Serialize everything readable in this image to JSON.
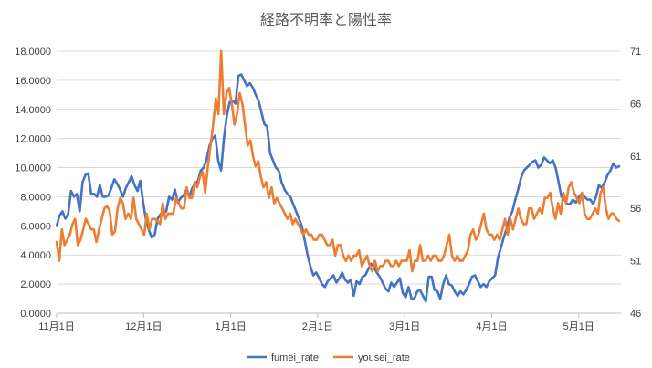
{
  "chart_data": {
    "type": "line",
    "title": "経路不明率と陽性率",
    "x_tick_labels": [
      "11月1日",
      "12月1日",
      "1月1日",
      "2月1日",
      "3月1日",
      "4月1日",
      "5月1日"
    ],
    "y_left": {
      "min": 0,
      "max": 18,
      "ticks": [
        "0.0000",
        "2.0000",
        "4.0000",
        "6.0000",
        "8.0000",
        "10.0000",
        "12.0000",
        "14.0000",
        "16.0000",
        "18.0000"
      ]
    },
    "y_right": {
      "min": 46,
      "max": 71,
      "ticks": [
        "46",
        "51",
        "56",
        "61",
        "66",
        "71"
      ]
    },
    "grid": "horizontal",
    "legend_position": "bottom",
    "series": [
      {
        "name": "fumei_rate",
        "axis": "left",
        "color": "#4472C4",
        "values": [
          6.0,
          6.7,
          7.0,
          6.5,
          6.8,
          8.4,
          8.0,
          8.2,
          7.0,
          9.0,
          9.5,
          9.6,
          8.2,
          8.2,
          8.0,
          8.8,
          8.0,
          8.0,
          8.1,
          8.6,
          9.2,
          8.9,
          8.5,
          8.0,
          8.6,
          9.0,
          9.4,
          8.8,
          8.4,
          9.1,
          7.6,
          6.4,
          5.7,
          5.2,
          5.4,
          6.5,
          6.8,
          6.8,
          7.0,
          8.0,
          7.8,
          8.5,
          7.6,
          7.9,
          8.1,
          8.5,
          8.0,
          8.6,
          8.9,
          9.1,
          9.8,
          10.0,
          10.6,
          11.5,
          12.0,
          12.2,
          10.5,
          9.8,
          12.0,
          13.6,
          14.5,
          14.6,
          14.4,
          16.3,
          16.4,
          16.0,
          15.6,
          15.8,
          15.5,
          15.0,
          14.6,
          13.8,
          13.0,
          12.8,
          11.0,
          10.5,
          10.0,
          9.8,
          9.0,
          8.5,
          8.2,
          8.0,
          7.5,
          7.0,
          6.5,
          6.0,
          5.0,
          4.0,
          3.2,
          2.6,
          2.8,
          2.4,
          2.0,
          1.8,
          2.2,
          2.4,
          2.6,
          2.1,
          2.4,
          2.8,
          2.3,
          2.1,
          2.3,
          1.2,
          2.2,
          2.0,
          2.5,
          2.6,
          3.0,
          3.4,
          3.2,
          2.8,
          2.5,
          2.1,
          1.7,
          1.5,
          2.1,
          1.8,
          2.1,
          2.4,
          1.4,
          1.1,
          1.8,
          1.0,
          1.0,
          1.5,
          1.6,
          1.2,
          0.8,
          2.5,
          2.5,
          1.6,
          1.5,
          1.0,
          2.0,
          2.6,
          2.0,
          1.9,
          1.5,
          1.2,
          1.5,
          1.3,
          1.6,
          2.0,
          2.5,
          2.6,
          2.2,
          1.8,
          2.0,
          1.8,
          2.2,
          2.4,
          2.6,
          3.8,
          4.5,
          5.2,
          5.8,
          6.6,
          7.0,
          7.8,
          8.5,
          9.3,
          9.8,
          10.0,
          10.2,
          10.4,
          10.5,
          10.0,
          10.2,
          10.7,
          10.5,
          10.3,
          10.5,
          10.0,
          9.0,
          8.0,
          7.8,
          7.5,
          7.5,
          7.8,
          7.6,
          8.0,
          8.2,
          8.0,
          7.8,
          7.8,
          7.5,
          8.0,
          8.8,
          8.6,
          9.0,
          9.5,
          9.8,
          10.3,
          10.0,
          10.1
        ]
      },
      {
        "name": "yousei_rate",
        "axis": "right",
        "color": "#ED7D31",
        "values": [
          52.8,
          51.0,
          54.0,
          52.5,
          53.0,
          53.5,
          54.5,
          55.0,
          52.5,
          53.0,
          54.0,
          55.0,
          54.5,
          54.0,
          54.0,
          52.8,
          54.0,
          55.0,
          56.0,
          56.2,
          55.8,
          53.5,
          53.8,
          56.0,
          57.0,
          56.5,
          55.0,
          55.5,
          55.0,
          57.0,
          55.0,
          54.5,
          54.0,
          53.5,
          55.5,
          54.0,
          55.0,
          55.0,
          54.8,
          54.5,
          56.5,
          55.0,
          55.5,
          55.5,
          55.5,
          57.0,
          56.5,
          56.0,
          56.0,
          58.0,
          57.0,
          57.0,
          58.5,
          58.0,
          59.0,
          59.5,
          57.5,
          60.0,
          62.0,
          64.0,
          66.5,
          65.0,
          71.0,
          65.0,
          67.0,
          67.5,
          66.0,
          64.0,
          65.0,
          67.0,
          66.0,
          64.0,
          62.0,
          62.5,
          61.0,
          60.0,
          60.5,
          59.0,
          58.0,
          58.5,
          57.0,
          58.0,
          56.5,
          57.0,
          56.5,
          56.0,
          55.5,
          55.0,
          55.5,
          54.5,
          55.0,
          54.5,
          54.0,
          53.5,
          54.0,
          53.5,
          53.5,
          53.0,
          53.0,
          53.5,
          53.5,
          53.0,
          52.5,
          52.5,
          53.0,
          51.5,
          52.5,
          52.5,
          51.5,
          51.0,
          51.5,
          51.0,
          51.5,
          51.5,
          52.0,
          50.5,
          51.0,
          51.5,
          50.5,
          50.0,
          51.0,
          50.0,
          50.5,
          50.5,
          51.0,
          51.0,
          50.5,
          50.5,
          51.0,
          50.5,
          51.0,
          51.0,
          51.0,
          52.0,
          50.0,
          51.0,
          51.0,
          52.5,
          51.0,
          51.0,
          51.5,
          51.0,
          51.5,
          51.5,
          51.0,
          51.0,
          51.5,
          52.5,
          53.5,
          51.5,
          51.0,
          51.5,
          51.0,
          51.0,
          51.5,
          52.0,
          53.5,
          54.0,
          53.0,
          53.5,
          54.5,
          55.5,
          54.0,
          53.5,
          53.5,
          53.0,
          53.5,
          53.0,
          54.0,
          55.0,
          53.5,
          55.0,
          54.0,
          55.0,
          56.0,
          55.0,
          54.5,
          54.5,
          56.0,
          56.0,
          55.0,
          55.5,
          56.0,
          55.5,
          57.0,
          57.0,
          57.5,
          56.0,
          55.0,
          56.5,
          55.5,
          57.5,
          56.5,
          58.0,
          58.5,
          57.5,
          57.0,
          56.5,
          57.5,
          55.5,
          55.0,
          55.0,
          55.5,
          56.0,
          55.5,
          57.5,
          58.0,
          56.0,
          55.0,
          55.5,
          55.5,
          55.0,
          54.8
        ]
      }
    ]
  }
}
